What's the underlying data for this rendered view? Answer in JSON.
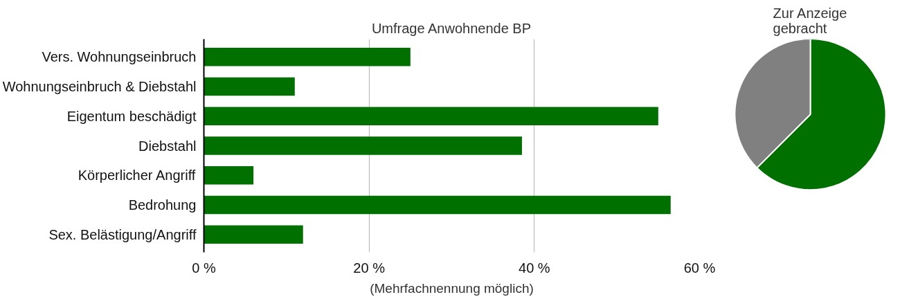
{
  "chart_data": [
    {
      "type": "bar",
      "orientation": "horizontal",
      "title": "Umfrage Anwohnende BP",
      "xlabel": "(Mehrfachnennung möglich)",
      "categories": [
        "Vers. Wohnungseinbruch",
        "Wohnungseinbruch & Diebstahl",
        "Eigentum beschädigt",
        "Diebstahl",
        "Körperlicher Angriff",
        "Bedrohung",
        "Sex. Belästigung/Angriff"
      ],
      "values": [
        25,
        11,
        55,
        38.5,
        6,
        56.5,
        12
      ],
      "color": "#007000",
      "xlim": [
        0,
        60
      ],
      "xticks": [
        {
          "value": 0,
          "label": "0 %"
        },
        {
          "value": 20,
          "label": "20 %"
        },
        {
          "value": 40,
          "label": "40 %"
        },
        {
          "value": 60,
          "label": "60 %"
        }
      ],
      "grid": "x"
    },
    {
      "type": "pie",
      "title": "Zur Anzeige gebracht",
      "categories": [
        null,
        null
      ],
      "values": [
        62.5,
        37.5
      ],
      "colors": [
        "#007000",
        "#808080"
      ]
    }
  ]
}
